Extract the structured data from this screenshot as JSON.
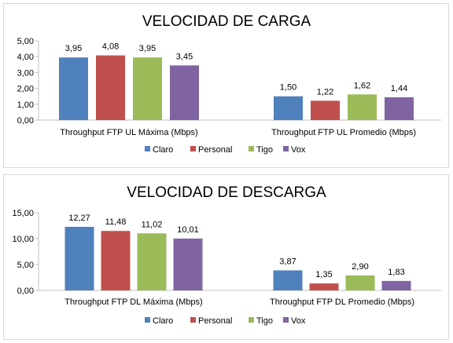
{
  "colors": {
    "axis": "#bfbfbf",
    "grid": "#d9d9d9"
  },
  "chart_data": [
    {
      "type": "bar",
      "title": "VELOCIDAD DE CARGA",
      "categories": [
        "Throughput FTP UL Máxima (Mbps)",
        "Throughput FTP UL Promedio (Mbps)"
      ],
      "ylim": [
        0,
        5
      ],
      "yticks": [
        0,
        1,
        2,
        3,
        4,
        5
      ],
      "ytick_labels": [
        "0,00",
        "1,00",
        "2,00",
        "3,00",
        "4,00",
        "5,00"
      ],
      "grid": false,
      "legend_position": "bottom",
      "series": [
        {
          "name": "Claro",
          "color": "#4f81bd",
          "values": [
            3.95,
            1.5
          ],
          "labels": [
            "3,95",
            "1,50"
          ]
        },
        {
          "name": "Personal",
          "color": "#c0504d",
          "values": [
            4.08,
            1.22
          ],
          "labels": [
            "4,08",
            "1,22"
          ]
        },
        {
          "name": "Tigo",
          "color": "#9bbb59",
          "values": [
            3.95,
            1.62
          ],
          "labels": [
            "3,95",
            "1,62"
          ]
        },
        {
          "name": "Vox",
          "color": "#8064a2",
          "values": [
            3.45,
            1.44
          ],
          "labels": [
            "3,45",
            "1,44"
          ]
        }
      ]
    },
    {
      "type": "bar",
      "title": "VELOCIDAD DE DESCARGA",
      "categories": [
        "Throughput FTP DL Máxima (Mbps)",
        "Throughput FTP DL Promedio (Mbps)"
      ],
      "ylim": [
        0,
        15
      ],
      "yticks": [
        0,
        5,
        10,
        15
      ],
      "ytick_labels": [
        "0,00",
        "5,00",
        "10,00",
        "15,00"
      ],
      "grid": false,
      "legend_position": "bottom",
      "series": [
        {
          "name": "Claro",
          "color": "#4f81bd",
          "values": [
            12.27,
            3.87
          ],
          "labels": [
            "12,27",
            "3,87"
          ]
        },
        {
          "name": "Personal",
          "color": "#c0504d",
          "values": [
            11.48,
            1.35
          ],
          "labels": [
            "11,48",
            "1,35"
          ]
        },
        {
          "name": "Tigo",
          "color": "#9bbb59",
          "values": [
            11.02,
            2.9
          ],
          "labels": [
            "11,02",
            "2,90"
          ]
        },
        {
          "name": "Vox",
          "color": "#8064a2",
          "values": [
            10.01,
            1.83
          ],
          "labels": [
            "10,01",
            "1,83"
          ]
        }
      ]
    }
  ]
}
